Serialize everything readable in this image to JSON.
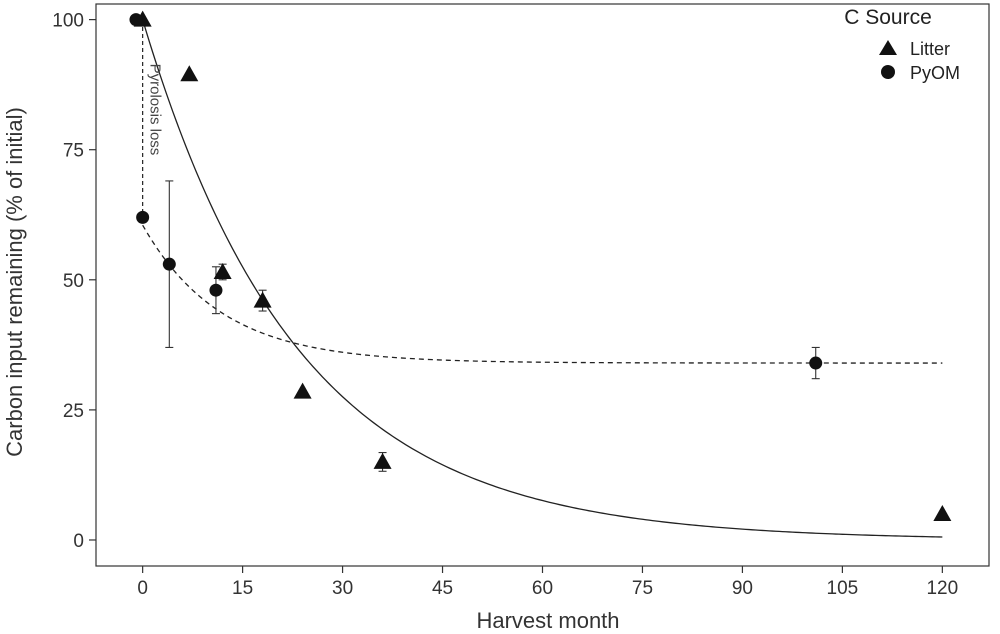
{
  "chart_data": {
    "type": "scatter",
    "title": "",
    "xlabel": "Harvest month",
    "ylabel": "Carbon input remaining (% of initial)",
    "xlim": [
      -7,
      127
    ],
    "ylim": [
      -5,
      103
    ],
    "xticks": [
      0,
      15,
      30,
      45,
      60,
      75,
      90,
      105,
      120
    ],
    "yticks": [
      0,
      25,
      50,
      75,
      100
    ],
    "grid": false,
    "legend": {
      "title": "C Source",
      "position": "top-right",
      "entries": [
        {
          "label": "Litter",
          "marker": "triangle"
        },
        {
          "label": "PyOM",
          "marker": "circle"
        }
      ]
    },
    "series": [
      {
        "name": "Litter",
        "marker": "triangle",
        "points": [
          {
            "x": 0,
            "y": 100
          },
          {
            "x": 7,
            "y": 89.5
          },
          {
            "x": 12,
            "y": 51.5,
            "err": 1.5
          },
          {
            "x": 18,
            "y": 46,
            "err": 2
          },
          {
            "x": 24,
            "y": 28.5
          },
          {
            "x": 36,
            "y": 15,
            "err": 1.8
          },
          {
            "x": 120,
            "y": 5
          }
        ],
        "fit": {
          "style": "solid",
          "model": "a*exp(-b*x)",
          "a": 100,
          "b": 0.043,
          "xrange": [
            0,
            120
          ]
        }
      },
      {
        "name": "PyOM",
        "marker": "circle",
        "points": [
          {
            "x": -1,
            "y": 100
          },
          {
            "x": 0,
            "y": 62
          },
          {
            "x": 4,
            "y": 53,
            "err": 16
          },
          {
            "x": 11,
            "y": 48,
            "err": 4.5
          },
          {
            "x": 101,
            "y": 34,
            "err": 3
          }
        ],
        "fit": {
          "style": "dashed",
          "model": "c+a*exp(-b*x)",
          "a": 26.5,
          "b": 0.085,
          "c": 34,
          "xrange": [
            0,
            120
          ]
        }
      }
    ],
    "annotations": [
      {
        "text": "Pyrolosis loss",
        "from": {
          "x": -1,
          "y": 100
        },
        "to": {
          "x": 0,
          "y": 62
        }
      }
    ]
  }
}
